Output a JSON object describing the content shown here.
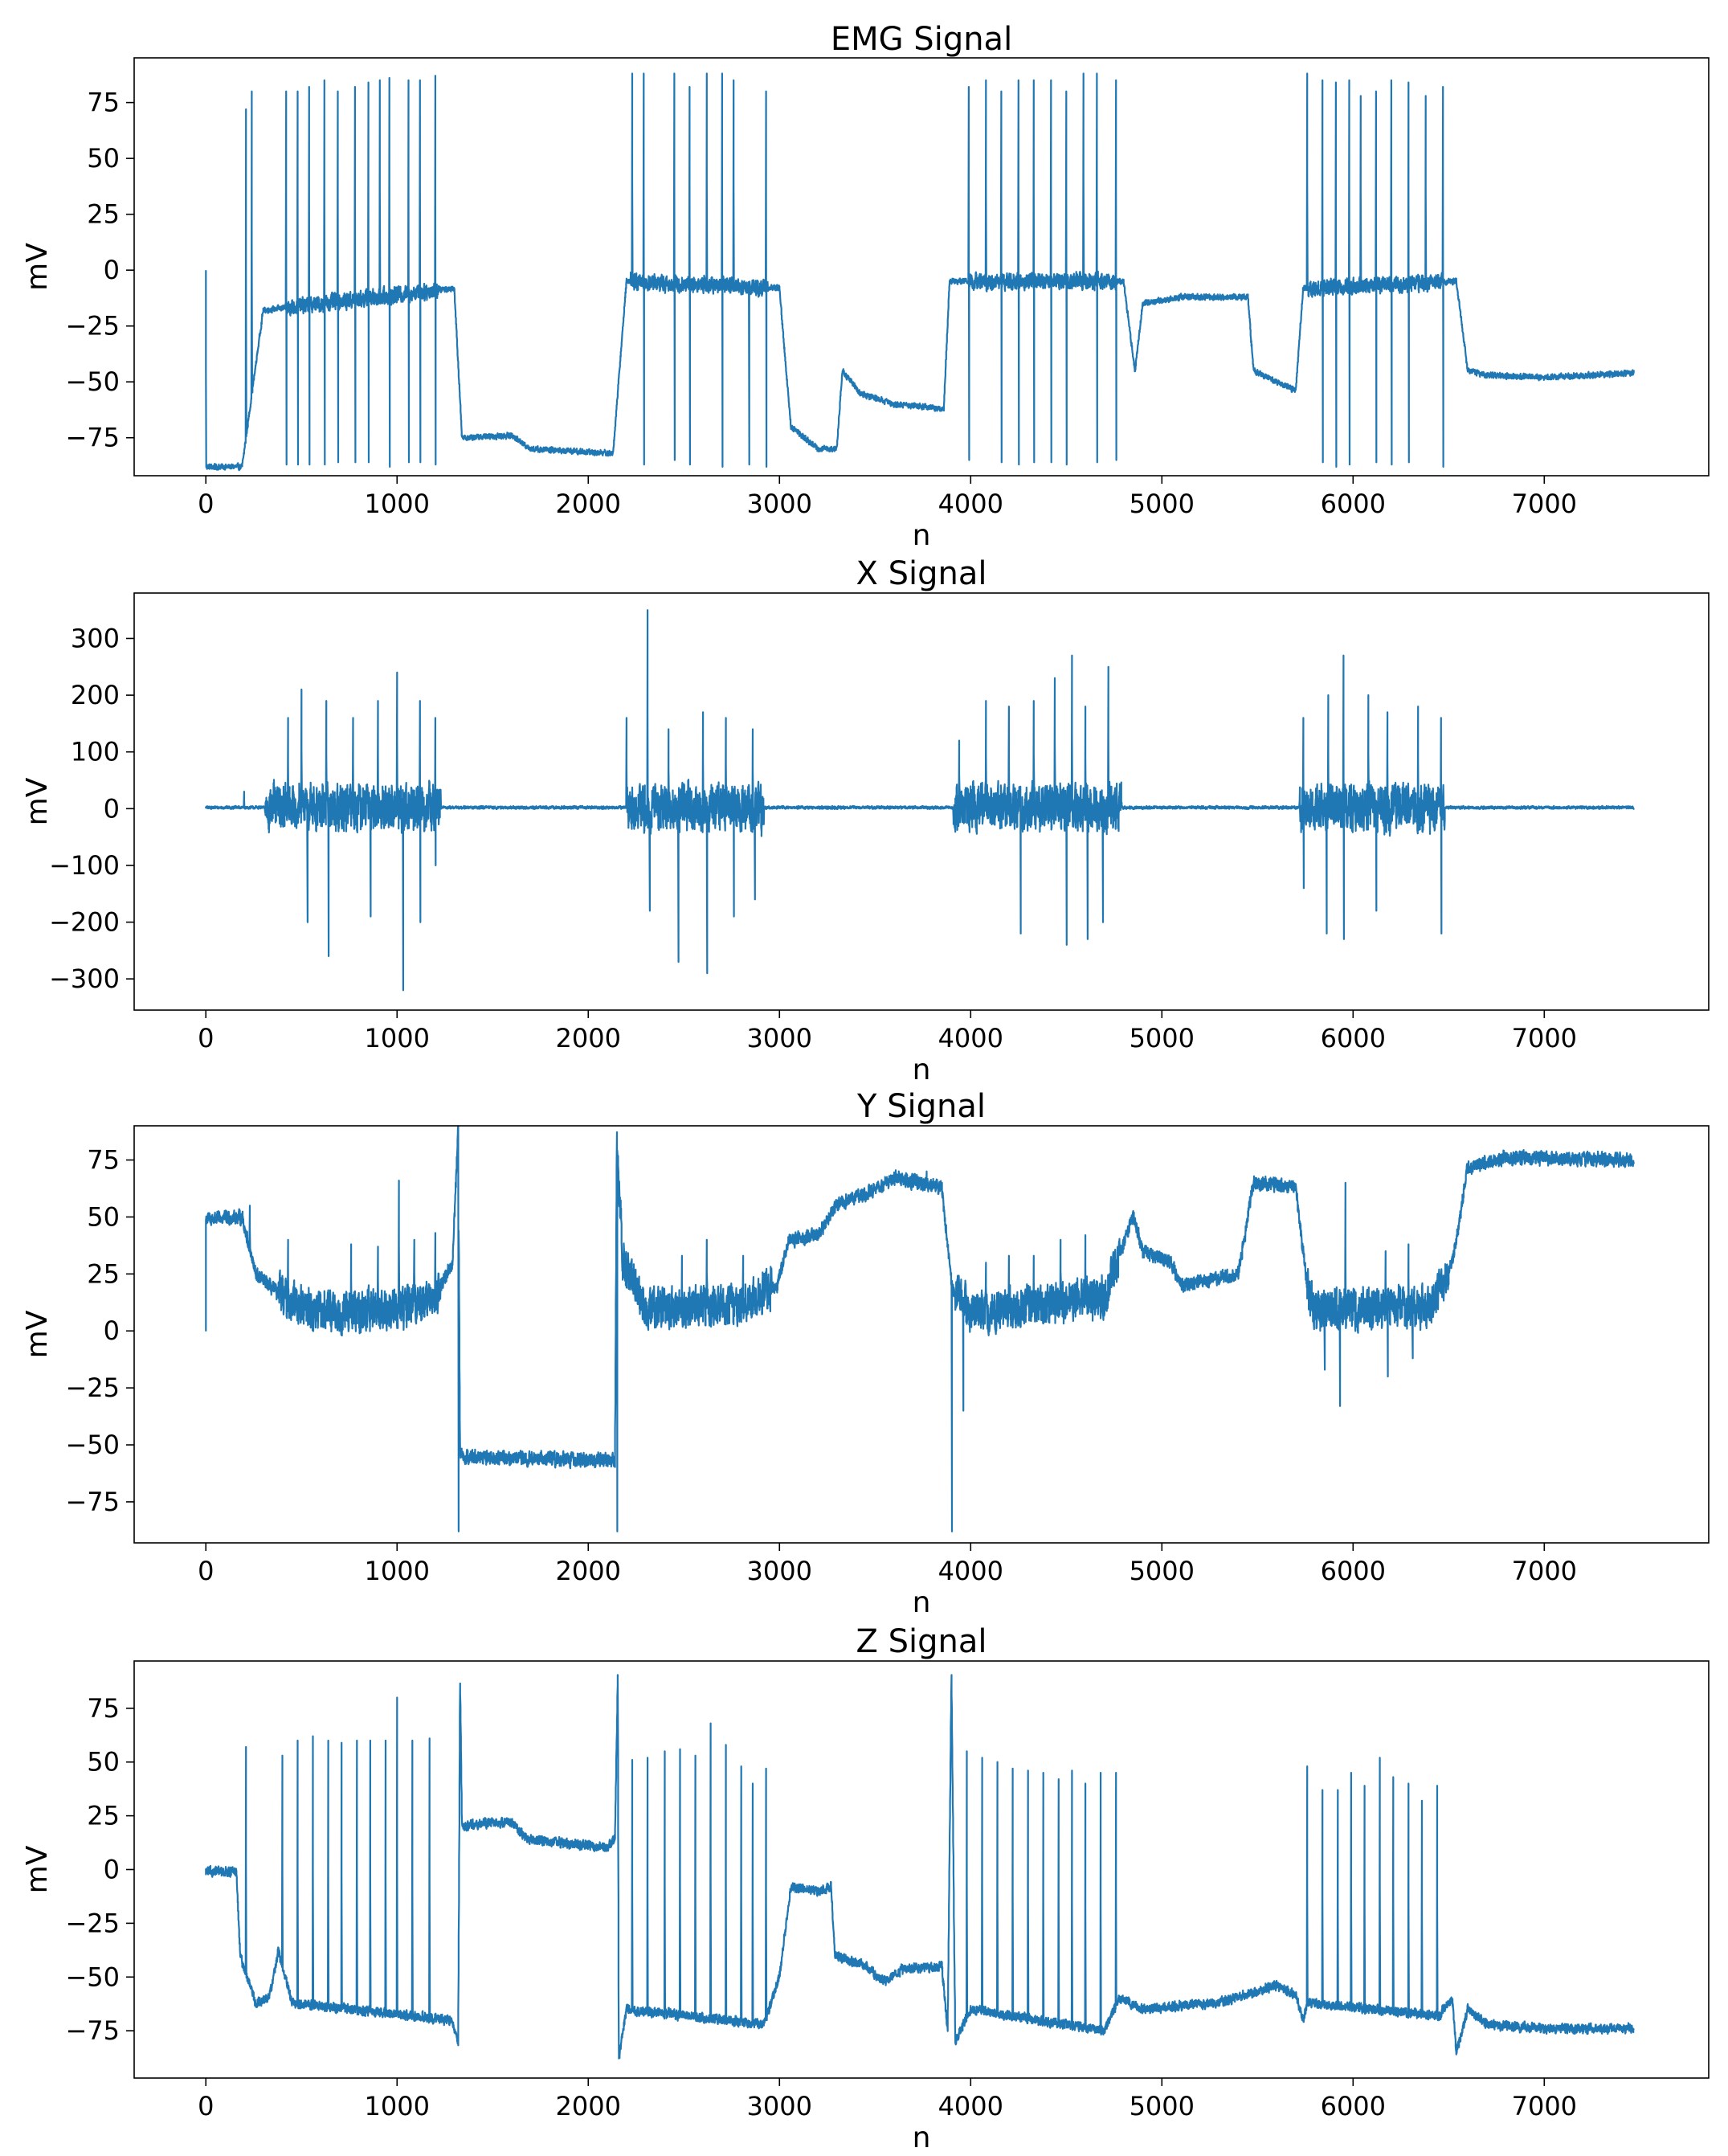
{
  "colors": {
    "line": "#1f77b4",
    "axes": "#000000",
    "background": "#ffffff"
  },
  "chart_data": [
    {
      "type": "line",
      "title": "EMG Signal",
      "xlabel": "n",
      "ylabel": "mV",
      "xlim": [
        -375,
        7860
      ],
      "ylim": [
        -92,
        95
      ],
      "xticks": [
        0,
        1000,
        2000,
        3000,
        4000,
        5000,
        6000,
        7000
      ],
      "yticks": [
        -75,
        -50,
        -25,
        0,
        25,
        50,
        75
      ],
      "grid": false,
      "series": [
        {
          "name": "EMG",
          "n_samples": 7470,
          "range": [
            -89,
            88
          ]
        }
      ],
      "bursts": [
        [
          420,
          1220
        ],
        [
          2220,
          2940
        ],
        [
          3990,
          4760
        ],
        [
          5760,
          6470
        ]
      ],
      "baseline": [
        [
          0,
          -88
        ],
        [
          190,
          -88
        ],
        [
          300,
          -18
        ],
        [
          1300,
          -8
        ],
        [
          1340,
          -75
        ],
        [
          1600,
          -74
        ],
        [
          1700,
          -80
        ],
        [
          2130,
          -82
        ],
        [
          2200,
          -5
        ],
        [
          3000,
          -8
        ],
        [
          3060,
          -70
        ],
        [
          3200,
          -80
        ],
        [
          3300,
          -80
        ],
        [
          3330,
          -45
        ],
        [
          3420,
          -55
        ],
        [
          3600,
          -60
        ],
        [
          3860,
          -62
        ],
        [
          3890,
          -5
        ],
        [
          4800,
          -5
        ],
        [
          4860,
          -45
        ],
        [
          4900,
          -15
        ],
        [
          5100,
          -12
        ],
        [
          5450,
          -12
        ],
        [
          5480,
          -45
        ],
        [
          5700,
          -54
        ],
        [
          5740,
          -8
        ],
        [
          6540,
          -5
        ],
        [
          6600,
          -45
        ],
        [
          6700,
          -47
        ],
        [
          7000,
          -48
        ],
        [
          7470,
          -46
        ]
      ],
      "peaks": [
        [
          0,
          0
        ],
        [
          210,
          72
        ],
        [
          240,
          80
        ],
        [
          420,
          80
        ],
        [
          480,
          80
        ],
        [
          540,
          82
        ],
        [
          620,
          85
        ],
        [
          690,
          80
        ],
        [
          780,
          82
        ],
        [
          850,
          84
        ],
        [
          910,
          85
        ],
        [
          960,
          86
        ],
        [
          1060,
          85
        ],
        [
          1120,
          85
        ],
        [
          1200,
          87
        ],
        [
          2230,
          88
        ],
        [
          2290,
          88
        ],
        [
          2450,
          88
        ],
        [
          2530,
          82
        ],
        [
          2620,
          88
        ],
        [
          2700,
          88
        ],
        [
          2760,
          85
        ],
        [
          2930,
          80
        ],
        [
          3990,
          82
        ],
        [
          4080,
          85
        ],
        [
          4160,
          80
        ],
        [
          4250,
          85
        ],
        [
          4330,
          85
        ],
        [
          4420,
          85
        ],
        [
          4500,
          80
        ],
        [
          4590,
          88
        ],
        [
          4660,
          88
        ],
        [
          4760,
          85
        ],
        [
          5760,
          88
        ],
        [
          5840,
          85
        ],
        [
          5910,
          84
        ],
        [
          5980,
          85
        ],
        [
          6040,
          78
        ],
        [
          6120,
          80
        ],
        [
          6200,
          85
        ],
        [
          6290,
          84
        ],
        [
          6380,
          78
        ],
        [
          6470,
          82
        ]
      ],
      "troughs": [
        [
          420,
          -87
        ],
        [
          480,
          -87
        ],
        [
          540,
          -87
        ],
        [
          620,
          -87
        ],
        [
          690,
          -86
        ],
        [
          780,
          -86
        ],
        [
          850,
          -86
        ],
        [
          960,
          -88
        ],
        [
          1060,
          -86
        ],
        [
          1120,
          -86
        ],
        [
          1200,
          -87
        ],
        [
          2290,
          -87
        ],
        [
          2450,
          -85
        ],
        [
          2530,
          -87
        ],
        [
          2700,
          -88
        ],
        [
          2840,
          -87
        ],
        [
          2930,
          -88
        ],
        [
          3990,
          -85
        ],
        [
          4160,
          -86
        ],
        [
          4250,
          -87
        ],
        [
          4330,
          -86
        ],
        [
          4420,
          -86
        ],
        [
          4500,
          -87
        ],
        [
          4660,
          -86
        ],
        [
          4760,
          -85
        ],
        [
          5840,
          -86
        ],
        [
          5910,
          -88
        ],
        [
          5980,
          -87
        ],
        [
          6120,
          -86
        ],
        [
          6200,
          -87
        ],
        [
          6290,
          -86
        ],
        [
          6470,
          -88
        ]
      ],
      "noise": 5
    },
    {
      "type": "line",
      "title": "X Signal",
      "xlabel": "n",
      "ylabel": "mV",
      "xlim": [
        -375,
        7860
      ],
      "ylim": [
        -355,
        380
      ],
      "xticks": [
        0,
        1000,
        2000,
        3000,
        4000,
        5000,
        6000,
        7000
      ],
      "yticks": [
        -300,
        -200,
        -100,
        0,
        100,
        200,
        300
      ],
      "grid": false,
      "series": [
        {
          "name": "X",
          "n_samples": 7470,
          "range": [
            -320,
            350
          ]
        }
      ],
      "bursts": [
        [
          310,
          1230
        ],
        [
          2200,
          2920
        ],
        [
          3910,
          4790
        ],
        [
          5720,
          6480
        ]
      ],
      "baseline": [
        [
          0,
          2
        ],
        [
          7470,
          2
        ]
      ],
      "peaks": [
        [
          200,
          30
        ],
        [
          430,
          160
        ],
        [
          500,
          210
        ],
        [
          630,
          190
        ],
        [
          770,
          160
        ],
        [
          900,
          190
        ],
        [
          1000,
          240
        ],
        [
          1120,
          190
        ],
        [
          1200,
          160
        ],
        [
          2200,
          160
        ],
        [
          2310,
          350
        ],
        [
          2420,
          140
        ],
        [
          2600,
          170
        ],
        [
          2720,
          160
        ],
        [
          2860,
          140
        ],
        [
          3940,
          120
        ],
        [
          4080,
          190
        ],
        [
          4200,
          180
        ],
        [
          4330,
          190
        ],
        [
          4440,
          230
        ],
        [
          4530,
          270
        ],
        [
          4600,
          180
        ],
        [
          4720,
          250
        ],
        [
          5740,
          160
        ],
        [
          5870,
          200
        ],
        [
          5950,
          270
        ],
        [
          6080,
          200
        ],
        [
          6180,
          170
        ],
        [
          6340,
          180
        ],
        [
          6460,
          160
        ]
      ],
      "troughs": [
        [
          530,
          -200
        ],
        [
          640,
          -260
        ],
        [
          860,
          -190
        ],
        [
          1030,
          -320
        ],
        [
          1120,
          -200
        ],
        [
          1200,
          -100
        ],
        [
          2320,
          -180
        ],
        [
          2470,
          -270
        ],
        [
          2620,
          -290
        ],
        [
          2760,
          -190
        ],
        [
          2870,
          -160
        ],
        [
          4260,
          -220
        ],
        [
          4500,
          -240
        ],
        [
          4610,
          -230
        ],
        [
          4690,
          -200
        ],
        [
          5740,
          -140
        ],
        [
          5860,
          -220
        ],
        [
          5950,
          -230
        ],
        [
          6120,
          -180
        ],
        [
          6460,
          -220
        ]
      ],
      "noise": 55
    },
    {
      "type": "line",
      "title": "Y Signal",
      "xlabel": "n",
      "ylabel": "mV",
      "xlim": [
        -375,
        7860
      ],
      "ylim": [
        -93,
        90
      ],
      "xticks": [
        0,
        1000,
        2000,
        3000,
        4000,
        5000,
        6000,
        7000
      ],
      "yticks": [
        -75,
        -50,
        -25,
        0,
        25,
        50,
        75
      ],
      "grid": false,
      "series": [
        {
          "name": "Y",
          "n_samples": 7470,
          "range": [
            -88,
            88
          ]
        }
      ],
      "bursts": [
        [
          380,
          1230
        ],
        [
          2160,
          2960
        ],
        [
          3920,
          4780
        ],
        [
          5760,
          6500
        ]
      ],
      "baseline": [
        [
          0,
          0
        ],
        [
          1,
          49
        ],
        [
          190,
          50
        ],
        [
          260,
          25
        ],
        [
          400,
          15
        ],
        [
          600,
          8
        ],
        [
          1000,
          10
        ],
        [
          1200,
          15
        ],
        [
          1290,
          30
        ],
        [
          1320,
          88
        ],
        [
          1330,
          -55
        ],
        [
          2140,
          -57
        ],
        [
          2150,
          85
        ],
        [
          2180,
          30
        ],
        [
          2300,
          10
        ],
        [
          2800,
          12
        ],
        [
          2990,
          20
        ],
        [
          3050,
          40
        ],
        [
          3200,
          42
        ],
        [
          3300,
          55
        ],
        [
          3500,
          62
        ],
        [
          3600,
          67
        ],
        [
          3850,
          63
        ],
        [
          3900,
          20
        ],
        [
          4000,
          8
        ],
        [
          4700,
          15
        ],
        [
          4850,
          50
        ],
        [
          4900,
          35
        ],
        [
          5050,
          30
        ],
        [
          5100,
          20
        ],
        [
          5400,
          25
        ],
        [
          5480,
          65
        ],
        [
          5700,
          63
        ],
        [
          5760,
          20
        ],
        [
          5800,
          10
        ],
        [
          6400,
          10
        ],
        [
          6520,
          30
        ],
        [
          6600,
          72
        ],
        [
          6800,
          76
        ],
        [
          7470,
          75
        ]
      ],
      "peaks": [
        [
          230,
          55
        ],
        [
          430,
          40
        ],
        [
          760,
          38
        ],
        [
          900,
          37
        ],
        [
          1010,
          66
        ],
        [
          1090,
          40
        ],
        [
          1200,
          43
        ],
        [
          2490,
          33
        ],
        [
          2620,
          40
        ],
        [
          2810,
          33
        ],
        [
          3770,
          70
        ],
        [
          4080,
          30
        ],
        [
          4200,
          33
        ],
        [
          4330,
          33
        ],
        [
          4470,
          40
        ],
        [
          4600,
          42
        ],
        [
          5960,
          65
        ],
        [
          6170,
          35
        ],
        [
          6290,
          38
        ]
      ],
      "troughs": [
        [
          1320,
          -88
        ],
        [
          2150,
          -88
        ],
        [
          3900,
          -88
        ],
        [
          3960,
          -35
        ],
        [
          5850,
          -17
        ],
        [
          5930,
          -33
        ],
        [
          6180,
          -20
        ],
        [
          6310,
          -12
        ]
      ],
      "noise": 12
    },
    {
      "type": "line",
      "title": "Z Signal",
      "xlabel": "n",
      "ylabel": "mV",
      "xlim": [
        -375,
        7860
      ],
      "ylim": [
        -97,
        97
      ],
      "xticks": [
        0,
        1000,
        2000,
        3000,
        4000,
        5000,
        6000,
        7000
      ],
      "yticks": [
        -75,
        -50,
        -25,
        0,
        25,
        50,
        75
      ],
      "grid": false,
      "series": [
        {
          "name": "Z",
          "n_samples": 7470,
          "range": [
            -88,
            90
          ]
        }
      ],
      "bursts": [],
      "baseline": [
        [
          0,
          -1
        ],
        [
          160,
          -1
        ],
        [
          180,
          -40
        ],
        [
          260,
          -62
        ],
        [
          330,
          -60
        ],
        [
          380,
          -38
        ],
        [
          450,
          -62
        ],
        [
          1280,
          -70
        ],
        [
          1320,
          -80
        ],
        [
          1330,
          88
        ],
        [
          1340,
          20
        ],
        [
          1500,
          22
        ],
        [
          1600,
          22
        ],
        [
          1680,
          14
        ],
        [
          1800,
          13
        ],
        [
          2100,
          10
        ],
        [
          2140,
          15
        ],
        [
          2155,
          90
        ],
        [
          2160,
          -88
        ],
        [
          2200,
          -65
        ],
        [
          2920,
          -72
        ],
        [
          3000,
          -50
        ],
        [
          3060,
          -8
        ],
        [
          3200,
          -10
        ],
        [
          3270,
          -8
        ],
        [
          3290,
          -40
        ],
        [
          3450,
          -45
        ],
        [
          3550,
          -52
        ],
        [
          3650,
          -46
        ],
        [
          3850,
          -45
        ],
        [
          3880,
          -75
        ],
        [
          3900,
          90
        ],
        [
          3920,
          -80
        ],
        [
          4000,
          -65
        ],
        [
          4700,
          -75
        ],
        [
          4780,
          -60
        ],
        [
          4900,
          -65
        ],
        [
          5300,
          -62
        ],
        [
          5450,
          -58
        ],
        [
          5600,
          -54
        ],
        [
          5700,
          -58
        ],
        [
          5740,
          -70
        ],
        [
          5760,
          -62
        ],
        [
          6450,
          -68
        ],
        [
          6520,
          -60
        ],
        [
          6540,
          -85
        ],
        [
          6600,
          -65
        ],
        [
          6700,
          -72
        ],
        [
          7000,
          -74
        ],
        [
          7470,
          -74
        ]
      ],
      "peaks": [
        [
          210,
          57
        ],
        [
          400,
          53
        ],
        [
          480,
          60
        ],
        [
          560,
          62
        ],
        [
          640,
          60
        ],
        [
          710,
          59
        ],
        [
          790,
          60
        ],
        [
          860,
          60
        ],
        [
          940,
          60
        ],
        [
          1000,
          80
        ],
        [
          1080,
          60
        ],
        [
          1170,
          61
        ],
        [
          2230,
          51
        ],
        [
          2310,
          52
        ],
        [
          2400,
          55
        ],
        [
          2480,
          56
        ],
        [
          2560,
          53
        ],
        [
          2640,
          68
        ],
        [
          2720,
          58
        ],
        [
          2800,
          48
        ],
        [
          2860,
          40
        ],
        [
          2930,
          47
        ],
        [
          3980,
          55
        ],
        [
          4060,
          52
        ],
        [
          4140,
          50
        ],
        [
          4220,
          47
        ],
        [
          4300,
          46
        ],
        [
          4380,
          45
        ],
        [
          4460,
          42
        ],
        [
          4530,
          46
        ],
        [
          4600,
          40
        ],
        [
          4680,
          45
        ],
        [
          4760,
          45
        ],
        [
          5760,
          48
        ],
        [
          5840,
          37
        ],
        [
          5920,
          37
        ],
        [
          5990,
          45
        ],
        [
          6060,
          39
        ],
        [
          6140,
          52
        ],
        [
          6210,
          43
        ],
        [
          6290,
          40
        ],
        [
          6360,
          32
        ],
        [
          6440,
          39
        ]
      ],
      "troughs": [],
      "noise": 3
    }
  ]
}
